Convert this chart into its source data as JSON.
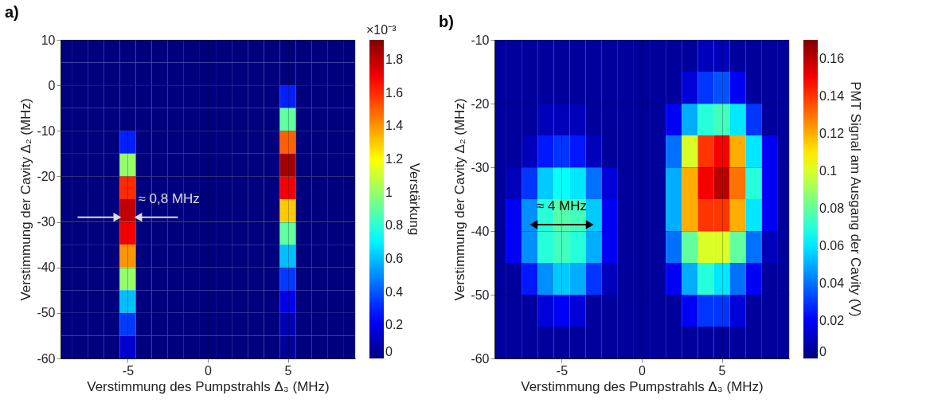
{
  "chart_data": [
    {
      "type": "heatmap",
      "title": "a)",
      "xlabel": "Verstimmung des Pumpstrahls Δ₃ (MHz)",
      "ylabel": "Verstimmung der Cavity Δ₂ (MHz)",
      "clabel": "Verstärkung",
      "x": [
        -9,
        -8,
        -7,
        -6,
        -5,
        -4,
        -3,
        -2,
        -1,
        0,
        1,
        2,
        3,
        4,
        5,
        6,
        7,
        8,
        9
      ],
      "y": [
        7.5,
        2.5,
        -2.5,
        -7.5,
        -12.5,
        -17.5,
        -22.5,
        -27.5,
        -32.5,
        -37.5,
        -42.5,
        -47.5,
        -52.5,
        -57.5
      ],
      "cells": [
        [
          0,
          0,
          0,
          0,
          0,
          0,
          0,
          0,
          0,
          0,
          0,
          0,
          0,
          0,
          0,
          0,
          0,
          0,
          0
        ],
        [
          0,
          0,
          0,
          0,
          0,
          0,
          0,
          0,
          0,
          0,
          0,
          0,
          0,
          0,
          0,
          0,
          0,
          0,
          0
        ],
        [
          0,
          0,
          0,
          0,
          0,
          0,
          0,
          0,
          0,
          0,
          0,
          0,
          0,
          0,
          0.3,
          0,
          0,
          0,
          0
        ],
        [
          0,
          0,
          0,
          0,
          0,
          0,
          0,
          0,
          0,
          0,
          0,
          0,
          0,
          0,
          0.9,
          0,
          0,
          0,
          0
        ],
        [
          0,
          0,
          0,
          0,
          0.3,
          0,
          0,
          0,
          0,
          0,
          0,
          0,
          0,
          0,
          1.5,
          0,
          0,
          0,
          0
        ],
        [
          0,
          0,
          0,
          0,
          1.0,
          0,
          0,
          0,
          0,
          0,
          0,
          0,
          0,
          0,
          1.85,
          0,
          0,
          0,
          0
        ],
        [
          0,
          0,
          0,
          0,
          1.6,
          0,
          0,
          0,
          0,
          0,
          0,
          0,
          0,
          0,
          1.7,
          0,
          0,
          0,
          0
        ],
        [
          0,
          0,
          0,
          0,
          1.8,
          0,
          0,
          0,
          0,
          0,
          0,
          0,
          0,
          0,
          1.3,
          0,
          0,
          0,
          0
        ],
        [
          0,
          0,
          0,
          0,
          1.7,
          0,
          0,
          0,
          0,
          0,
          0,
          0,
          0,
          0,
          0.9,
          0,
          0,
          0,
          0
        ],
        [
          0,
          0,
          0,
          0,
          1.4,
          0,
          0,
          0,
          0,
          0,
          0,
          0,
          0,
          0,
          0.6,
          0,
          0,
          0,
          0
        ],
        [
          0,
          0,
          0,
          0,
          1.0,
          0,
          0,
          0,
          0,
          0,
          0,
          0,
          0,
          0,
          0.35,
          0,
          0,
          0,
          0
        ],
        [
          0,
          0,
          0,
          0,
          0.6,
          0,
          0,
          0,
          0,
          0,
          0,
          0,
          0,
          0,
          0.2,
          0,
          0,
          0,
          0
        ],
        [
          0,
          0,
          0,
          0,
          0.35,
          0,
          0,
          0,
          0,
          0,
          0,
          0,
          0,
          0,
          0.1,
          0,
          0,
          0,
          0
        ],
        [
          0,
          0,
          0,
          0,
          0.15,
          0,
          0,
          0,
          0,
          0,
          0,
          0,
          0,
          0,
          0.05,
          0,
          0,
          0,
          0
        ]
      ],
      "xlim": [
        -9.2,
        9.2
      ],
      "xticks": [
        -5,
        0,
        5
      ],
      "ylim": [
        -60,
        10
      ],
      "yticks": [
        -60,
        -50,
        -40,
        -30,
        -20,
        -10,
        0,
        10
      ],
      "clim": [
        0,
        1.92
      ],
      "cticks": [
        0,
        0.2,
        0.4,
        0.6,
        0.8,
        1,
        1.2,
        1.4,
        1.6,
        1.8
      ],
      "grid": true,
      "annotations": [
        "≈ 0,8 MHz",
        "×10⁻³"
      ]
    },
    {
      "type": "heatmap",
      "title": "b)",
      "xlabel": "Verstimmung des Pumpstrahls Δ₃ (MHz)",
      "ylabel": "Verstimmung der Cavity Δ₂ (MHz)",
      "clabel": "PMT Signal am Ausgang der Cavity (V)",
      "x": [
        -9,
        -8,
        -7,
        -6,
        -5,
        -4,
        -3,
        -2,
        -1,
        0,
        1,
        2,
        3,
        4,
        5,
        6,
        7,
        8,
        9
      ],
      "y": [
        -12.5,
        -17.5,
        -22.5,
        -27.5,
        -32.5,
        -37.5,
        -42.5,
        -47.5,
        -52.5,
        -57.5
      ],
      "cells": [
        [
          0.005,
          0.005,
          0.005,
          0.005,
          0.005,
          0.005,
          0.005,
          0.005,
          0.005,
          0.005,
          0.005,
          0.005,
          0.005,
          0.01,
          0.01,
          0.005,
          0.005,
          0.005,
          0.005
        ],
        [
          0.005,
          0.005,
          0.005,
          0.005,
          0.005,
          0.005,
          0.005,
          0.005,
          0.005,
          0.005,
          0.005,
          0.005,
          0.015,
          0.03,
          0.035,
          0.02,
          0.005,
          0.005,
          0.005
        ],
        [
          0.005,
          0.005,
          0.005,
          0.01,
          0.01,
          0.01,
          0.005,
          0.005,
          0.005,
          0.005,
          0.005,
          0.02,
          0.05,
          0.07,
          0.075,
          0.06,
          0.03,
          0.005,
          0.005
        ],
        [
          0.005,
          0.005,
          0.01,
          0.025,
          0.03,
          0.025,
          0.01,
          0.005,
          0.005,
          0.005,
          0.005,
          0.04,
          0.1,
          0.14,
          0.15,
          0.12,
          0.06,
          0.02,
          0.005
        ],
        [
          0.005,
          0.01,
          0.03,
          0.055,
          0.065,
          0.06,
          0.04,
          0.015,
          0.005,
          0.005,
          0.005,
          0.05,
          0.12,
          0.15,
          0.16,
          0.13,
          0.07,
          0.02,
          0.005
        ],
        [
          0.005,
          0.02,
          0.045,
          0.07,
          0.078,
          0.075,
          0.055,
          0.02,
          0.005,
          0.005,
          0.005,
          0.05,
          0.12,
          0.14,
          0.14,
          0.12,
          0.06,
          0.02,
          0.005
        ],
        [
          0.005,
          0.02,
          0.045,
          0.07,
          0.075,
          0.07,
          0.05,
          0.02,
          0.005,
          0.005,
          0.005,
          0.04,
          0.08,
          0.1,
          0.1,
          0.08,
          0.04,
          0.01,
          0.005
        ],
        [
          0.005,
          0.005,
          0.025,
          0.045,
          0.055,
          0.05,
          0.03,
          0.01,
          0.005,
          0.005,
          0.005,
          0.02,
          0.05,
          0.07,
          0.06,
          0.04,
          0.02,
          0.005,
          0.005
        ],
        [
          0.005,
          0.005,
          0.005,
          0.015,
          0.02,
          0.015,
          0.005,
          0.005,
          0.005,
          0.005,
          0.005,
          0.005,
          0.02,
          0.03,
          0.03,
          0.015,
          0.005,
          0.005,
          0.005
        ],
        [
          0.005,
          0.005,
          0.005,
          0.005,
          0.005,
          0.005,
          0.005,
          0.005,
          0.005,
          0.005,
          0.005,
          0.005,
          0.005,
          0.005,
          0.005,
          0.005,
          0.005,
          0.005,
          0.005
        ]
      ],
      "xlim": [
        -9.2,
        9.2
      ],
      "xticks": [
        -5,
        0,
        5
      ],
      "ylim": [
        -60,
        -10
      ],
      "yticks": [
        -60,
        -50,
        -40,
        -30,
        -20,
        -10
      ],
      "clim": [
        0,
        0.17
      ],
      "cticks": [
        0,
        0.02,
        0.04,
        0.06,
        0.08,
        0.1,
        0.12,
        0.14,
        0.16
      ],
      "grid": true,
      "annotations": [
        "≈ 4 MHz"
      ]
    }
  ]
}
